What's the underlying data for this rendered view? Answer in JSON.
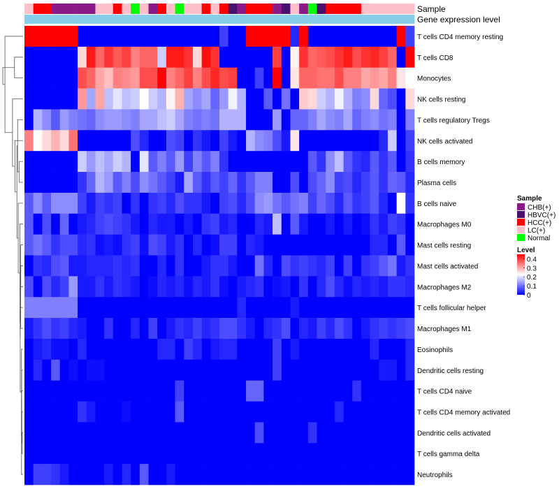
{
  "chart_data": {
    "type": "heatmap",
    "title": "",
    "annotation_tracks": [
      "Sample",
      "Gene expression level"
    ],
    "columns": 44,
    "sample_groups": [
      "LC(+)",
      "HCC(+)",
      "HCC(+)",
      "CHB(+)",
      "CHB(+)",
      "CHB(+)",
      "CHB(+)",
      "CHB(+)",
      "LC(+)",
      "LC(+)",
      "HCC(+)",
      "LC(+)",
      "Normal",
      "LC(+)",
      "CHB(+)",
      "HCC(+)",
      "LC(+)",
      "Normal",
      "LC(+)",
      "LC(+)",
      "HCC(+)",
      "LC(+)",
      "HCC(+)",
      "HBVC(+)",
      "CHB(+)",
      "HCC(+)",
      "HCC(+)",
      "HCC(+)",
      "CHB(+)",
      "HBVC(+)",
      "LC(+)",
      "CHB(+)",
      "Normal",
      "HBVC(+)",
      "HCC(+)",
      "HCC(+)",
      "HCC(+)",
      "HCC(+)",
      "LC(+)",
      "LC(+)",
      "LC(+)",
      "LC(+)",
      "LC(+)",
      "LC(+)"
    ],
    "expression_level_track": [
      "Gene expression level",
      "Gene expression level",
      "Gene expression level",
      "Gene expression level",
      "Gene expression level",
      "Gene expression level",
      "Gene expression level",
      "Gene expression level",
      "Gene expression level",
      "Gene expression level",
      "Gene expression level",
      "Gene expression level",
      "Gene expression level",
      "Gene expression level",
      "Gene expression level",
      "Gene expression level",
      "Gene expression level",
      "Gene expression level",
      "Gene expression level",
      "Gene expression level",
      "Gene expression level",
      "Gene expression level",
      "Gene expression level",
      "Gene expression level",
      "Gene expression level",
      "Gene expression level",
      "Gene expression level",
      "Gene expression level",
      "Gene expression level",
      "Gene expression level",
      "Gene expression level",
      "Gene expression level",
      "Gene expression level",
      "Gene expression level",
      "Gene expression level",
      "Gene expression level",
      "Gene expression level",
      "Gene expression level",
      "Gene expression level",
      "Gene expression level",
      "Gene expression level",
      "Gene expression level",
      "Gene expression level",
      "Gene expression level"
    ],
    "rows": [
      {
        "label": "T cells CD4 memory resting",
        "values": [
          0.42,
          0.45,
          0.45,
          0.44,
          0.43,
          0.41,
          0,
          0,
          0,
          0,
          0,
          0,
          0,
          0,
          0,
          0,
          0,
          0,
          0,
          0,
          0,
          0,
          0.05,
          0,
          0,
          0.45,
          0.45,
          0.45,
          0.45,
          0.45,
          0.03,
          0.45,
          0,
          0,
          0,
          0,
          0,
          0,
          0,
          0,
          0,
          0,
          0.45,
          0.05
        ]
      },
      {
        "label": "T cells CD8",
        "values": [
          0,
          0,
          0,
          0,
          0,
          0,
          0.23,
          0.38,
          0.32,
          0.36,
          0.33,
          0.35,
          0.3,
          0.32,
          0.32,
          0.16,
          0.38,
          0.38,
          0.36,
          0.23,
          0.39,
          0.36,
          0,
          0,
          0,
          0,
          0,
          0,
          0.35,
          0,
          0.21,
          0.36,
          0.32,
          0.33,
          0.34,
          0.36,
          0.38,
          0.34,
          0.36,
          0.37,
          0.35,
          0.32,
          0,
          0.45
        ]
      },
      {
        "label": "Monocytes",
        "values": [
          0,
          0,
          0,
          0,
          0,
          0,
          0.34,
          0.32,
          0.27,
          0.25,
          0.3,
          0.29,
          0.28,
          0.34,
          0.34,
          0.42,
          0.3,
          0.32,
          0.35,
          0.3,
          0.34,
          0.37,
          0.34,
          0.35,
          0,
          0,
          0.05,
          0,
          0.41,
          0,
          0.22,
          0.32,
          0.32,
          0.31,
          0.31,
          0.34,
          0.3,
          0.3,
          0.27,
          0.28,
          0.27,
          0.3,
          0.22,
          0.2
        ]
      },
      {
        "label": "NK cells resting",
        "values": [
          0,
          0,
          0,
          0,
          0,
          0,
          0.28,
          0.13,
          0.27,
          0.15,
          0.18,
          0.15,
          0.16,
          0.2,
          0.16,
          0.14,
          0.21,
          0.26,
          0.13,
          0.11,
          0.13,
          0.08,
          0.12,
          0.19,
          0.14,
          0,
          0,
          0.07,
          0,
          0.09,
          0,
          0.24,
          0.23,
          0.16,
          0.14,
          0.19,
          0.14,
          0.1,
          0.11,
          0.23,
          0.08,
          0.06,
          0,
          0.23
        ]
      },
      {
        "label": "T cells regulatory  Tregs",
        "values": [
          0,
          0.14,
          0.11,
          0.07,
          0.12,
          0.1,
          0.09,
          0.08,
          0.11,
          0.12,
          0.12,
          0.11,
          0.1,
          0.13,
          0.13,
          0.15,
          0.16,
          0.13,
          0.1,
          0.09,
          0.1,
          0.09,
          0.14,
          0.14,
          0.14,
          0,
          0,
          0,
          0.12,
          0,
          0.08,
          0.08,
          0.1,
          0.13,
          0.11,
          0.1,
          0.13,
          0.08,
          0.1,
          0.11,
          0.09,
          0.1,
          0,
          0.1
        ]
      },
      {
        "label": "NK cells activated",
        "values": [
          0.3,
          0.2,
          0.23,
          0.26,
          0.23,
          0.31,
          0,
          0,
          0,
          0,
          0,
          0,
          0.06,
          0.03,
          0,
          0,
          0.06,
          0.05,
          0,
          0.04,
          0.02,
          0,
          0.05,
          0.02,
          0,
          0.14,
          0.11,
          0.1,
          0.06,
          0.02,
          0.22,
          0,
          0,
          0,
          0,
          0,
          0,
          0,
          0,
          0,
          0.03,
          0.16,
          0,
          0.05
        ]
      },
      {
        "label": "B cells memory",
        "values": [
          0,
          0,
          0,
          0,
          0,
          0,
          0.16,
          0.12,
          0.15,
          0.13,
          0.16,
          0.14,
          0,
          0.18,
          0.07,
          0.1,
          0.07,
          0.12,
          0.05,
          0.1,
          0.07,
          0.1,
          0.04,
          0,
          0,
          0,
          0,
          0,
          0,
          0,
          0,
          0,
          0.07,
          0.04,
          0.11,
          0.15,
          0.07,
          0.04,
          0.03,
          0.07,
          0.04,
          0.07,
          0,
          0.04
        ]
      },
      {
        "label": "Plasma cells",
        "values": [
          0,
          0,
          0,
          0,
          0,
          0,
          0.04,
          0.08,
          0.14,
          0.12,
          0.07,
          0.1,
          0.06,
          0.11,
          0.09,
          0.07,
          0.05,
          0.02,
          0.13,
          0.07,
          0.04,
          0.07,
          0.05,
          0.08,
          0.04,
          0.07,
          0.1,
          0.1,
          0,
          0,
          0.06,
          0,
          0.06,
          0.08,
          0.11,
          0.05,
          0.06,
          0.03,
          0.05,
          0.07,
          0.04,
          0.08,
          0.07,
          0.03
        ]
      },
      {
        "label": "B cells naive",
        "values": [
          0.07,
          0.11,
          0.07,
          0.11,
          0.11,
          0.11,
          0.05,
          0.02,
          0.05,
          0.04,
          0.05,
          0,
          0.04,
          0,
          0.04,
          0.05,
          0.03,
          0.06,
          0.04,
          0.04,
          0.02,
          0,
          0.05,
          0.06,
          0.03,
          0.06,
          0.11,
          0.12,
          0.09,
          0.07,
          0.09,
          0.1,
          0.05,
          0.08,
          0.06,
          0.03,
          0.07,
          0.04,
          0.05,
          0.07,
          0.03,
          0,
          0.2,
          0.04
        ]
      },
      {
        "label": "Macrophages M0",
        "values": [
          0.07,
          0,
          0.06,
          0,
          0.08,
          0,
          0.02,
          0.03,
          0.05,
          0.06,
          0.05,
          0.04,
          0.02,
          0,
          0.03,
          0.02,
          0.02,
          0,
          0.02,
          0,
          0.04,
          0.05,
          0.02,
          0.03,
          0,
          0,
          0.03,
          0.02,
          0.15,
          0,
          0.07,
          0.02,
          0,
          0,
          0.02,
          0,
          0.02,
          0,
          0.01,
          0.04,
          0.02,
          0.05,
          0.04,
          0
        ]
      },
      {
        "label": "Mast cells resting",
        "values": [
          0.07,
          0.09,
          0.07,
          0.04,
          0.06,
          0.06,
          0.03,
          0.04,
          0.01,
          0.02,
          0.01,
          0.04,
          0.05,
          0.01,
          0.06,
          0.05,
          0.02,
          0.04,
          0,
          0.03,
          0,
          0.01,
          0.05,
          0.05,
          0,
          0.03,
          0.02,
          0,
          0,
          0,
          0,
          0,
          0,
          0,
          0,
          0,
          0,
          0,
          0,
          0.03,
          0.03,
          0,
          0.07,
          0
        ]
      },
      {
        "label": "Mast cells activated",
        "values": [
          0,
          0.04,
          0.03,
          0.06,
          0.07,
          0.02,
          0.02,
          0.03,
          0.03,
          0.03,
          0.04,
          0.03,
          0.04,
          0,
          0,
          0.03,
          0,
          0.04,
          0,
          0,
          0.02,
          0.04,
          0.04,
          0.02,
          0,
          0,
          0.09,
          0.03,
          0,
          0.06,
          0.04,
          0.05,
          0.04,
          0.03,
          0.05,
          0,
          0.05,
          0,
          0.04,
          0.05,
          0.07,
          0.09,
          0.02,
          0.04
        ]
      },
      {
        "label": "Macrophages M2",
        "values": [
          0.06,
          0,
          0.06,
          0.03,
          0.05,
          0.12,
          0.02,
          0.02,
          0.04,
          0.02,
          0.04,
          0.03,
          0.02,
          0,
          0.01,
          0.03,
          0.02,
          0.03,
          0.01,
          0.03,
          0.02,
          0.04,
          0.01,
          0,
          0.02,
          0.03,
          0.04,
          0,
          0.01,
          0.02,
          0,
          0.04,
          0,
          0.03,
          0.06,
          0.03,
          0.01,
          0.03,
          0.02,
          0.03,
          0.02,
          0.04,
          0.04,
          0.03
        ]
      },
      {
        "label": "T cells follicular helper",
        "values": [
          0.1,
          0.1,
          0.1,
          0.1,
          0.1,
          0.1,
          0,
          0,
          0,
          0,
          0,
          0,
          0,
          0,
          0,
          0,
          0,
          0,
          0,
          0,
          0,
          0,
          0,
          0,
          0.03,
          0,
          0,
          0,
          0,
          0,
          0.02,
          0,
          0,
          0,
          0,
          0,
          0,
          0,
          0,
          0,
          0,
          0,
          0,
          0
        ]
      },
      {
        "label": "Macrophages M1",
        "values": [
          0.02,
          0.04,
          0.06,
          0.04,
          0.05,
          0.03,
          0.02,
          0,
          0,
          0.04,
          0,
          0,
          0.03,
          0,
          0.05,
          0,
          0.02,
          0.04,
          0.03,
          0.05,
          0.03,
          0.04,
          0.06,
          0.06,
          0.04,
          0.02,
          0,
          0.03,
          0.04,
          0.06,
          0,
          0.03,
          0.02,
          0.05,
          0.03,
          0.06,
          0.04,
          0,
          0.02,
          0.04,
          0.05,
          0.04,
          0.05,
          0.06
        ]
      },
      {
        "label": "Eosinophils",
        "values": [
          0,
          0.02,
          0.03,
          0.01,
          0.01,
          0,
          0.03,
          0,
          0,
          0,
          0,
          0,
          0,
          0,
          0,
          0.03,
          0.03,
          0,
          0.05,
          0.03,
          0,
          0.02,
          0.03,
          0.03,
          0,
          0,
          0,
          0,
          0.05,
          0,
          0.02,
          0,
          0,
          0,
          0,
          0,
          0,
          0,
          0,
          0.03,
          0,
          0,
          0,
          0.03
        ]
      },
      {
        "label": "Dendritic cells resting",
        "values": [
          0,
          0.03,
          0,
          0.07,
          0,
          0.01,
          0,
          0.01,
          0.01,
          0,
          0,
          0,
          0,
          0,
          0,
          0,
          0,
          0,
          0,
          0,
          0,
          0,
          0,
          0,
          0,
          0,
          0,
          0,
          0.05,
          0,
          0,
          0,
          0,
          0,
          0,
          0,
          0,
          0,
          0,
          0,
          0.02,
          0.02,
          0,
          0.03
        ]
      },
      {
        "label": "T cells CD4 naive",
        "values": [
          0,
          0,
          0,
          0,
          0,
          0,
          0,
          0,
          0,
          0,
          0,
          0,
          0,
          0,
          0,
          0,
          0,
          0.05,
          0,
          0,
          0,
          0,
          0,
          0,
          0,
          0.08,
          0.08,
          0,
          0,
          0,
          0,
          0,
          0,
          0,
          0,
          0,
          0,
          0.04,
          0,
          0,
          0,
          0,
          0,
          0
        ]
      },
      {
        "label": "T cells CD4 memory activated",
        "values": [
          0,
          0,
          0,
          0,
          0,
          0,
          0.04,
          0.02,
          0,
          0,
          0,
          0.01,
          0,
          0,
          0,
          0,
          0,
          0.07,
          0,
          0,
          0,
          0,
          0,
          0,
          0,
          0,
          0,
          0,
          0,
          0,
          0,
          0,
          0,
          0,
          0,
          0.03,
          0,
          0,
          0,
          0,
          0,
          0,
          0,
          0
        ]
      },
      {
        "label": "Dendritic cells activated",
        "values": [
          0,
          0,
          0,
          0,
          0,
          0,
          0,
          0,
          0,
          0,
          0,
          0,
          0,
          0,
          0,
          0,
          0,
          0,
          0,
          0,
          0,
          0,
          0,
          0,
          0,
          0,
          0.06,
          0,
          0,
          0,
          0,
          0,
          0.04,
          0,
          0,
          0,
          0,
          0,
          0,
          0,
          0,
          0,
          0,
          0
        ]
      },
      {
        "label": "T cells gamma delta",
        "values": [
          0,
          0,
          0,
          0,
          0,
          0,
          0,
          0,
          0,
          0,
          0,
          0,
          0,
          0,
          0,
          0,
          0,
          0,
          0,
          0,
          0,
          0,
          0,
          0,
          0,
          0,
          0,
          0,
          0,
          0,
          0,
          0,
          0,
          0,
          0,
          0,
          0,
          0,
          0,
          0,
          0,
          0,
          0,
          0
        ]
      },
      {
        "label": "Neutrophils",
        "values": [
          0,
          0.05,
          0.05,
          0.04,
          0.02,
          0,
          0,
          0,
          0,
          0.02,
          0,
          0.03,
          0,
          0.07,
          0,
          0,
          0.02,
          0,
          0,
          0,
          0,
          0,
          0,
          0,
          0,
          0,
          0,
          0,
          0,
          0,
          0,
          0,
          0,
          0,
          0,
          0,
          0,
          0,
          0,
          0,
          0,
          0,
          0,
          0
        ]
      }
    ],
    "sample_legend": {
      "title": "Sample",
      "entries": [
        {
          "label": "CHB(+)",
          "color": "#8B1A89"
        },
        {
          "label": "HBVC(+)",
          "color": "#4B0F6E"
        },
        {
          "label": "HCC(+)",
          "color": "#FF0000"
        },
        {
          "label": "LC(+)",
          "color": "#FFC0CB"
        },
        {
          "label": "Normal",
          "color": "#00FF00"
        }
      ]
    },
    "level_legend": {
      "title": "Level",
      "ticks": [
        "0.4",
        "0.3",
        "0.2",
        "0.1",
        "0"
      ],
      "tick_values": [
        0.4,
        0.3,
        0.2,
        0.1,
        0
      ],
      "range": [
        0,
        0.45
      ],
      "colors": [
        "#0000FF",
        "#FFFFFF",
        "#FF0000"
      ]
    },
    "expression_track_color": "#87CEEB"
  }
}
